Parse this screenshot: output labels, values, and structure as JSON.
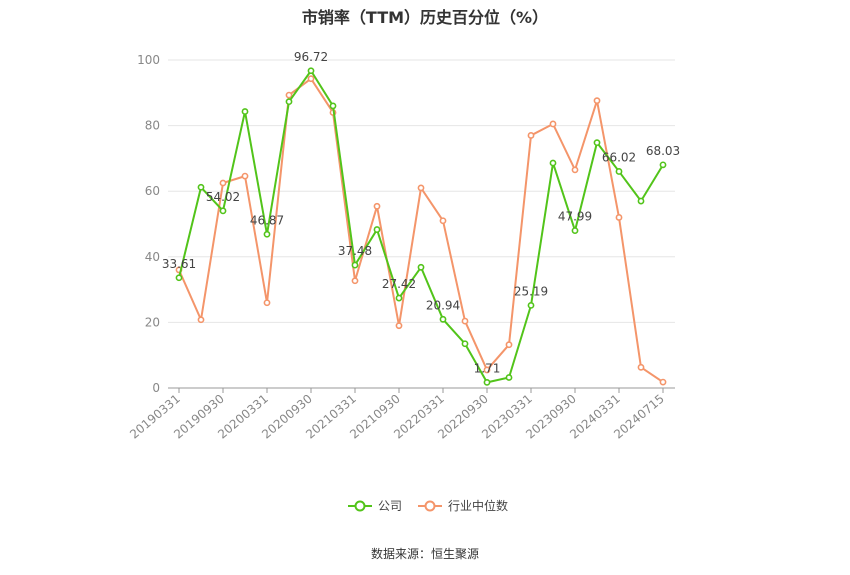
{
  "title": "市销率（TTM）历史百分位（%）",
  "source": "数据来源：恒生聚源",
  "chart_data": {
    "type": "line",
    "x": [
      "20190331",
      "20190630",
      "20190930",
      "20191231",
      "20200331",
      "20200630",
      "20200930",
      "20201231",
      "20210331",
      "20210630",
      "20210930",
      "20211231",
      "20220331",
      "20220630",
      "20220930",
      "20221231",
      "20230331",
      "20230630",
      "20230930",
      "20231231",
      "20240331",
      "20240630",
      "20240715"
    ],
    "x_tick_labels": [
      "20190331",
      "20190930",
      "20200331",
      "20200930",
      "20210331",
      "20210930",
      "20220331",
      "20220930",
      "20230331",
      "20230930",
      "20240331",
      "20240715"
    ],
    "ylim": [
      0,
      100
    ],
    "y_ticks": [
      0,
      20,
      40,
      60,
      80,
      100
    ],
    "grid": true,
    "legend_position": "bottom-center",
    "series": [
      {
        "name": "公司",
        "color": "#52c41a",
        "values": [
          33.61,
          61.2,
          54.02,
          84.3,
          46.87,
          87.3,
          96.72,
          86.0,
          37.48,
          48.3,
          27.42,
          36.8,
          20.94,
          13.5,
          1.71,
          3.2,
          25.19,
          68.6,
          47.99,
          74.8,
          66.02,
          57.0,
          68.03
        ],
        "data_labels": [
          {
            "index": 0,
            "text": "33.61"
          },
          {
            "index": 2,
            "text": "54.02"
          },
          {
            "index": 4,
            "text": "46.87"
          },
          {
            "index": 6,
            "text": "96.72"
          },
          {
            "index": 8,
            "text": "37.48"
          },
          {
            "index": 10,
            "text": "27.42"
          },
          {
            "index": 12,
            "text": "20.94"
          },
          {
            "index": 14,
            "text": "1.71"
          },
          {
            "index": 16,
            "text": "25.19"
          },
          {
            "index": 18,
            "text": "47.99"
          },
          {
            "index": 20,
            "text": "66.02"
          },
          {
            "index": 22,
            "text": "68.03"
          }
        ]
      },
      {
        "name": "行业中位数",
        "color": "#f4956a",
        "values": [
          36.0,
          20.8,
          62.5,
          64.6,
          26.0,
          89.3,
          94.3,
          84.0,
          32.7,
          55.4,
          19.0,
          61.0,
          51.0,
          20.4,
          5.5,
          13.2,
          77.0,
          80.5,
          66.5,
          87.6,
          52.0,
          6.3,
          1.8
        ]
      }
    ]
  }
}
